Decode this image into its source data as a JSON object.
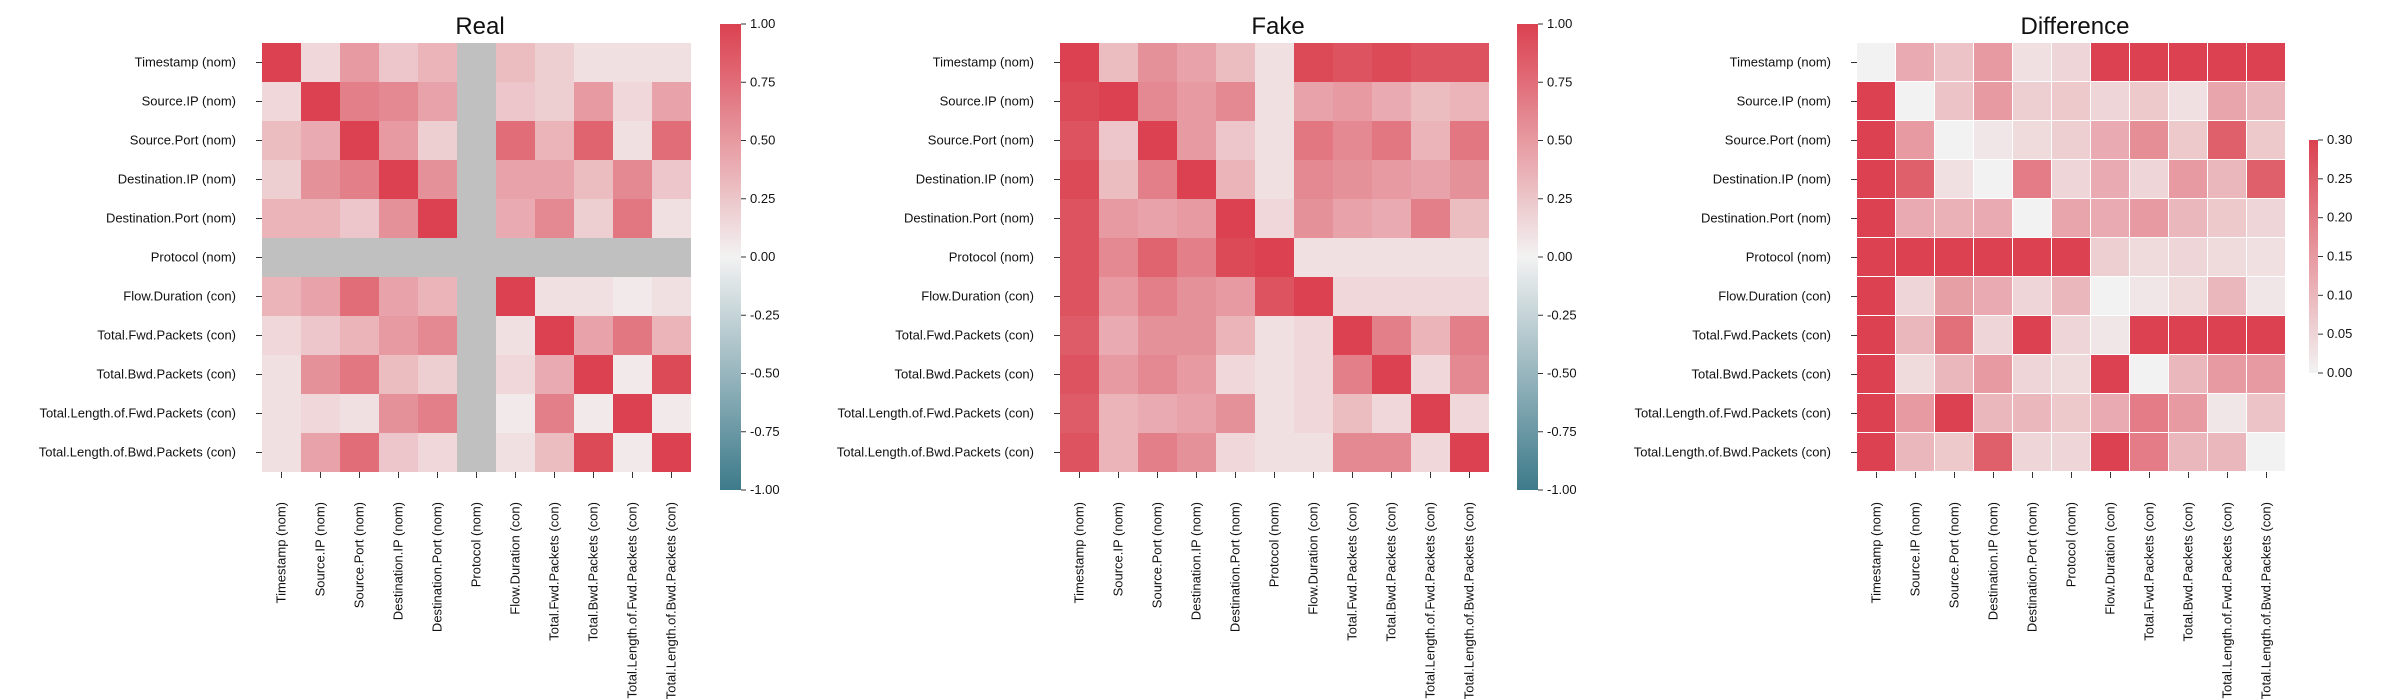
{
  "chart_data": [
    {
      "type": "heatmap",
      "title": "Real",
      "rows": [
        "Timestamp (nom)",
        "Source.IP (nom)",
        "Source.Port (nom)",
        "Destination.IP (nom)",
        "Destination.Port (nom)",
        "Protocol (nom)",
        "Flow.Duration (con)",
        "Total.Fwd.Packets (con)",
        "Total.Bwd.Packets (con)",
        "Total.Length.of.Fwd.Packets (con)",
        "Total.Length.of.Bwd.Packets (con)"
      ],
      "columns": [
        "Timestamp (nom)",
        "Source.IP (nom)",
        "Source.Port (nom)",
        "Destination.IP (nom)",
        "Destination.Port (nom)",
        "Protocol (nom)",
        "Flow.Duration (con)",
        "Total.Fwd.Packets (con)",
        "Total.Bwd.Packets (con)",
        "Total.Length.of.Fwd.Packets (con)",
        "Total.Length.of.Bwd.Packets (con)"
      ],
      "values": [
        [
          1.0,
          0.15,
          0.5,
          0.25,
          0.35,
          null,
          0.3,
          0.2,
          0.1,
          0.1,
          0.1
        ],
        [
          0.15,
          1.0,
          0.65,
          0.6,
          0.45,
          null,
          0.25,
          0.2,
          0.5,
          0.15,
          0.45
        ],
        [
          0.3,
          0.4,
          1.0,
          0.5,
          0.2,
          null,
          0.75,
          0.35,
          0.8,
          0.1,
          0.75
        ],
        [
          0.2,
          0.55,
          0.65,
          1.0,
          0.55,
          null,
          0.45,
          0.45,
          0.3,
          0.6,
          0.25
        ],
        [
          0.35,
          0.35,
          0.25,
          0.55,
          1.0,
          null,
          0.4,
          0.6,
          0.2,
          0.7,
          0.1
        ],
        [
          null,
          null,
          null,
          null,
          null,
          null,
          null,
          null,
          null,
          null,
          null
        ],
        [
          0.35,
          0.45,
          0.75,
          0.45,
          0.35,
          null,
          1.0,
          0.1,
          0.1,
          0.05,
          0.1
        ],
        [
          0.15,
          0.25,
          0.35,
          0.5,
          0.6,
          null,
          0.1,
          1.0,
          0.45,
          0.7,
          0.35
        ],
        [
          0.1,
          0.55,
          0.7,
          0.3,
          0.2,
          null,
          0.15,
          0.4,
          1.0,
          0.05,
          0.95
        ],
        [
          0.1,
          0.15,
          0.1,
          0.55,
          0.65,
          null,
          0.05,
          0.65,
          0.05,
          1.0,
          0.05
        ],
        [
          0.1,
          0.45,
          0.75,
          0.25,
          0.15,
          null,
          0.1,
          0.3,
          0.95,
          0.05,
          1.0
        ]
      ],
      "missing_color": "#c0c0c0",
      "colorbar": {
        "min": -1.0,
        "max": 1.0,
        "ticks": [
          "1.00",
          "0.75",
          "0.50",
          "0.25",
          "0.00",
          "-0.25",
          "-0.50",
          "-0.75",
          "-1.00"
        ]
      }
    },
    {
      "type": "heatmap",
      "title": "Fake",
      "rows": [
        "Timestamp (nom)",
        "Source.IP (nom)",
        "Source.Port (nom)",
        "Destination.IP (nom)",
        "Destination.Port (nom)",
        "Protocol (nom)",
        "Flow.Duration (con)",
        "Total.Fwd.Packets (con)",
        "Total.Bwd.Packets (con)",
        "Total.Length.of.Fwd.Packets (con)",
        "Total.Length.of.Bwd.Packets (con)"
      ],
      "columns": [
        "Timestamp (nom)",
        "Source.IP (nom)",
        "Source.Port (nom)",
        "Destination.IP (nom)",
        "Destination.Port (nom)",
        "Protocol (nom)",
        "Flow.Duration (con)",
        "Total.Fwd.Packets (con)",
        "Total.Bwd.Packets (con)",
        "Total.Length.of.Fwd.Packets (con)",
        "Total.Length.of.Bwd.Packets (con)"
      ],
      "values": [
        [
          1.0,
          0.3,
          0.55,
          0.45,
          0.3,
          0.1,
          0.95,
          0.9,
          0.95,
          0.9,
          0.9
        ],
        [
          0.95,
          1.0,
          0.6,
          0.5,
          0.6,
          0.1,
          0.45,
          0.5,
          0.4,
          0.3,
          0.35
        ],
        [
          0.9,
          0.25,
          1.0,
          0.5,
          0.25,
          0.1,
          0.7,
          0.6,
          0.7,
          0.35,
          0.7
        ],
        [
          0.95,
          0.3,
          0.65,
          1.0,
          0.35,
          0.1,
          0.6,
          0.55,
          0.5,
          0.45,
          0.55
        ],
        [
          0.9,
          0.5,
          0.45,
          0.5,
          1.0,
          0.15,
          0.55,
          0.45,
          0.4,
          0.65,
          0.3
        ],
        [
          0.9,
          0.6,
          0.8,
          0.65,
          0.95,
          1.0,
          0.1,
          0.1,
          0.1,
          0.1,
          0.1
        ],
        [
          0.9,
          0.5,
          0.65,
          0.55,
          0.5,
          0.9,
          1.0,
          0.15,
          0.15,
          0.15,
          0.15
        ],
        [
          0.85,
          0.4,
          0.55,
          0.55,
          0.35,
          0.1,
          0.15,
          1.0,
          0.65,
          0.35,
          0.65
        ],
        [
          0.9,
          0.5,
          0.6,
          0.5,
          0.15,
          0.1,
          0.15,
          0.65,
          1.0,
          0.15,
          0.6
        ],
        [
          0.85,
          0.35,
          0.4,
          0.45,
          0.55,
          0.1,
          0.15,
          0.3,
          0.15,
          1.0,
          0.15
        ],
        [
          0.9,
          0.35,
          0.65,
          0.55,
          0.15,
          0.1,
          0.1,
          0.6,
          0.6,
          0.15,
          1.0
        ]
      ],
      "colorbar": {
        "min": -1.0,
        "max": 1.0,
        "ticks": [
          "1.00",
          "0.75",
          "0.50",
          "0.25",
          "0.00",
          "-0.25",
          "-0.50",
          "-0.75",
          "-1.00"
        ]
      }
    },
    {
      "type": "heatmap",
      "title": "Difference",
      "rows": [
        "Timestamp (nom)",
        "Source.IP (nom)",
        "Source.Port (nom)",
        "Destination.IP (nom)",
        "Destination.Port (nom)",
        "Protocol (nom)",
        "Flow.Duration (con)",
        "Total.Fwd.Packets (con)",
        "Total.Bwd.Packets (con)",
        "Total.Length.of.Fwd.Packets (con)",
        "Total.Length.of.Bwd.Packets (con)"
      ],
      "columns": [
        "Timestamp (nom)",
        "Source.IP (nom)",
        "Source.Port (nom)",
        "Destination.IP (nom)",
        "Destination.Port (nom)",
        "Protocol (nom)",
        "Flow.Duration (con)",
        "Total.Fwd.Packets (con)",
        "Total.Bwd.Packets (con)",
        "Total.Length.of.Fwd.Packets (con)",
        "Total.Length.of.Bwd.Packets (con)"
      ],
      "values": [
        [
          0.0,
          0.12,
          0.08,
          0.15,
          0.03,
          0.05,
          0.3,
          0.3,
          0.3,
          0.3,
          0.3
        ],
        [
          0.3,
          0.0,
          0.08,
          0.15,
          0.06,
          0.07,
          0.05,
          0.07,
          0.03,
          0.13,
          0.1
        ],
        [
          0.3,
          0.15,
          0.0,
          0.02,
          0.04,
          0.06,
          0.12,
          0.17,
          0.07,
          0.25,
          0.07
        ],
        [
          0.3,
          0.25,
          0.03,
          0.0,
          0.2,
          0.05,
          0.12,
          0.05,
          0.15,
          0.1,
          0.25
        ],
        [
          0.3,
          0.12,
          0.11,
          0.12,
          0.0,
          0.13,
          0.12,
          0.15,
          0.1,
          0.07,
          0.05
        ],
        [
          0.3,
          0.3,
          0.3,
          0.3,
          0.3,
          0.3,
          0.06,
          0.04,
          0.05,
          0.04,
          0.03
        ],
        [
          0.3,
          0.05,
          0.14,
          0.12,
          0.05,
          0.1,
          0.0,
          0.02,
          0.04,
          0.1,
          0.02
        ],
        [
          0.3,
          0.1,
          0.22,
          0.05,
          0.3,
          0.05,
          0.02,
          0.3,
          0.3,
          0.3,
          0.3
        ],
        [
          0.3,
          0.04,
          0.1,
          0.15,
          0.05,
          0.04,
          0.3,
          0.0,
          0.1,
          0.15,
          0.15
        ],
        [
          0.3,
          0.15,
          0.3,
          0.1,
          0.1,
          0.07,
          0.12,
          0.2,
          0.15,
          0.02,
          0.08
        ],
        [
          0.3,
          0.1,
          0.07,
          0.25,
          0.05,
          0.05,
          0.3,
          0.2,
          0.1,
          0.1,
          0.0
        ]
      ],
      "colorbar": {
        "min": 0.0,
        "max": 0.3,
        "ticks": [
          "0.30",
          "0.25",
          "0.20",
          "0.15",
          "0.10",
          "0.05",
          "0.00"
        ]
      }
    }
  ],
  "colors": {
    "high": "#db4150",
    "mid": "#f2f2f2",
    "low": "#3d7a8a"
  }
}
